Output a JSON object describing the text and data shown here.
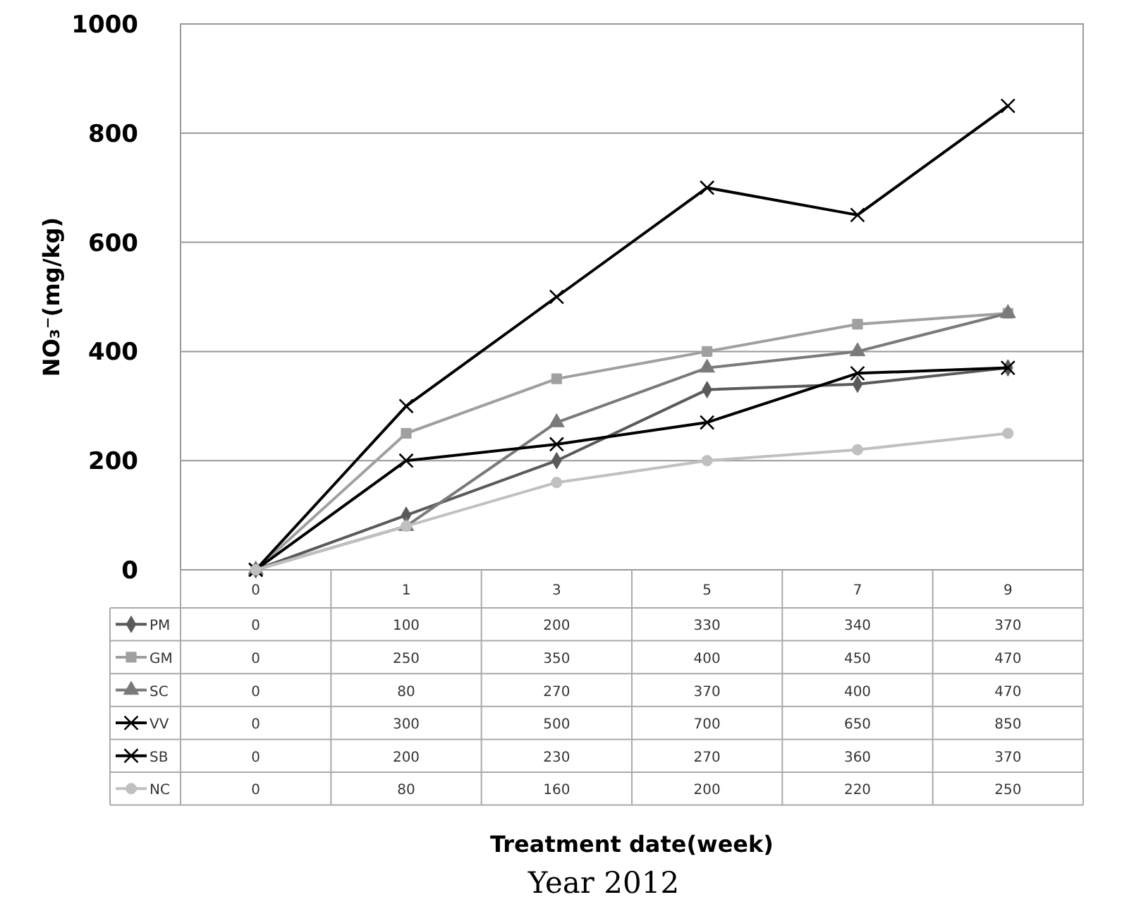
{
  "chart_data": {
    "type": "line",
    "ylabel": "NO₃⁻(mg/kg)",
    "annotations": [
      "Treatment date(week)",
      "Year 2012"
    ],
    "categories": [
      "0",
      "1",
      "3",
      "5",
      "7",
      "9"
    ],
    "series": [
      {
        "name": "PM",
        "color": "#5a5a5a",
        "marker": "diamond",
        "values": [
          0,
          100,
          200,
          330,
          340,
          370
        ]
      },
      {
        "name": "GM",
        "color": "#a0a0a0",
        "marker": "square",
        "values": [
          0,
          250,
          350,
          400,
          450,
          470
        ]
      },
      {
        "name": "SC",
        "color": "#7a7a7a",
        "marker": "triangle",
        "values": [
          0,
          80,
          270,
          370,
          400,
          470
        ]
      },
      {
        "name": "VV",
        "color": "#000000",
        "marker": "cross",
        "values": [
          0,
          300,
          500,
          700,
          650,
          850
        ]
      },
      {
        "name": "SB",
        "color": "#000000",
        "marker": "cross",
        "values": [
          0,
          200,
          230,
          270,
          360,
          370
        ]
      },
      {
        "name": "NC",
        "color": "#c0c0c0",
        "marker": "circle",
        "values": [
          0,
          80,
          160,
          200,
          220,
          250
        ]
      }
    ],
    "ylim": [
      0,
      1000
    ],
    "yticks": [
      0,
      200,
      400,
      600,
      800,
      1000
    ],
    "grid": "y",
    "legend": "bottom left",
    "data_labels": true,
    "line_style": "solid"
  }
}
